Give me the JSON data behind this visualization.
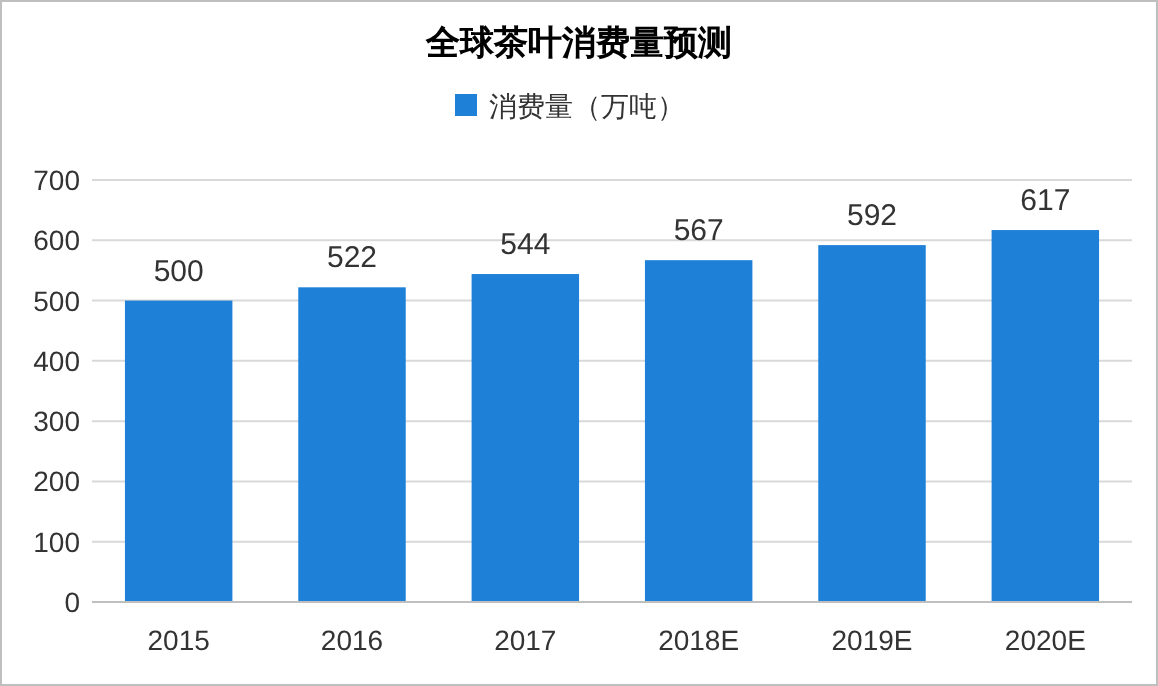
{
  "chart_data": {
    "type": "bar",
    "title": "全球茶叶消费量预测",
    "categories": [
      "2015",
      "2016",
      "2017",
      "2018E",
      "2019E",
      "2020E"
    ],
    "series": [
      {
        "name": "消费量（万吨）",
        "color": "#1f80d8",
        "values": [
          500,
          522,
          544,
          567,
          592,
          617
        ]
      }
    ],
    "ylim": [
      0,
      700
    ],
    "yticks": [
      0,
      100,
      200,
      300,
      400,
      500,
      600,
      700
    ],
    "grid": "y",
    "legend": "top",
    "data_labels": true
  }
}
